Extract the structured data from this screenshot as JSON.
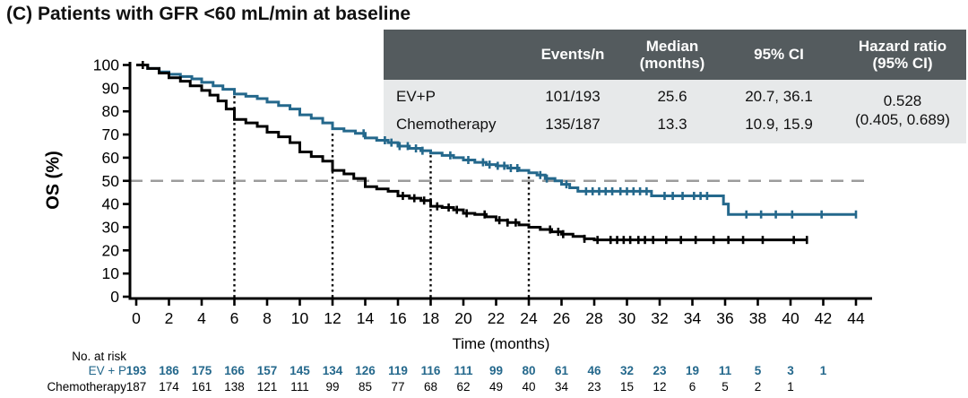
{
  "title": "(C) Patients with GFR <60 mL/min at baseline",
  "colors": {
    "evp_curve": "#24688c",
    "chemo_curve": "#000000",
    "reference_dash": "#9c9c9c",
    "dropline": "#000000",
    "table_header_bg": "#545b5e",
    "table_header_text": "#ffffff",
    "table_body_bg": "#e7e9ea"
  },
  "stats_table": {
    "header": {
      "events": "Events/n",
      "median_line1": "Median",
      "median_line2": "(months)",
      "ci": "95% CI",
      "hr_line1": "Hazard ratio",
      "hr_line2": "(95% CI)"
    },
    "rows": [
      {
        "label": "EV+P",
        "events_n": "101/193",
        "median": "25.6",
        "ci": "20.7, 36.1"
      },
      {
        "label": "Chemotherapy",
        "events_n": "135/187",
        "median": "13.3",
        "ci": "10.9, 15.9"
      }
    ],
    "hazard_ratio_value": "0.528",
    "hazard_ratio_ci": "(0.405, 0.689)"
  },
  "chart_data": {
    "type": "line",
    "subtype": "kaplan-meier-step",
    "xlabel": "Time (months)",
    "ylabel": "OS (%)",
    "xlim": [
      0,
      44
    ],
    "xticks": [
      0,
      2,
      4,
      6,
      8,
      10,
      12,
      14,
      16,
      18,
      20,
      22,
      24,
      26,
      28,
      30,
      32,
      34,
      36,
      38,
      40,
      42,
      44
    ],
    "ylim": [
      0,
      100
    ],
    "yticks": [
      0,
      10,
      20,
      30,
      40,
      50,
      60,
      70,
      80,
      90,
      100
    ],
    "grid": false,
    "reference_line_y": 50,
    "dropline_months": [
      6,
      12,
      18,
      24
    ],
    "series": [
      {
        "name": "EV + P",
        "color": "#24688c",
        "points": [
          [
            0,
            100
          ],
          [
            0.7,
            98.5
          ],
          [
            1.4,
            97
          ],
          [
            2,
            96
          ],
          [
            2.7,
            95
          ],
          [
            3.4,
            94
          ],
          [
            4,
            92.5
          ],
          [
            4.7,
            91
          ],
          [
            5.3,
            89.5
          ],
          [
            6,
            87.5
          ],
          [
            6.7,
            86.5
          ],
          [
            7.4,
            85.5
          ],
          [
            8,
            84
          ],
          [
            8.7,
            82.5
          ],
          [
            9.4,
            81
          ],
          [
            10,
            78.5
          ],
          [
            10.7,
            77
          ],
          [
            11.4,
            75
          ],
          [
            12,
            72.5
          ],
          [
            12.7,
            71.5
          ],
          [
            13.4,
            70.5
          ],
          [
            14,
            68.5
          ],
          [
            14.7,
            67.5
          ],
          [
            15.4,
            66.5
          ],
          [
            16,
            65
          ],
          [
            16.7,
            64
          ],
          [
            17.4,
            63
          ],
          [
            18,
            62
          ],
          [
            18.7,
            61
          ],
          [
            19.4,
            60
          ],
          [
            20,
            59
          ],
          [
            20.7,
            58
          ],
          [
            21.4,
            57
          ],
          [
            22,
            56.5
          ],
          [
            22.7,
            55.5
          ],
          [
            23.4,
            54.5
          ],
          [
            24,
            53.5
          ],
          [
            24.5,
            52.5
          ],
          [
            25,
            51
          ],
          [
            25.6,
            50
          ],
          [
            26,
            48.5
          ],
          [
            26.5,
            47
          ],
          [
            27,
            45.5
          ],
          [
            31.5,
            43.5
          ],
          [
            35.9,
            40
          ],
          [
            36.2,
            35.5
          ],
          [
            44,
            35.5
          ]
        ],
        "censor_times": [
          13.9,
          15.2,
          15.6,
          16.1,
          16.6,
          17.1,
          17.5,
          19.2,
          20.3,
          21.2,
          21.6,
          22.1,
          22.5,
          22.9,
          23.3,
          24.7,
          25.1,
          26.3,
          27.5,
          27.9,
          28.3,
          28.7,
          29.1,
          29.6,
          30.0,
          30.4,
          30.8,
          31.2,
          32.3,
          32.8,
          33.4,
          34.1,
          34.5,
          34.9,
          37.3,
          38.2,
          39.1,
          40.1,
          41.9,
          44.0
        ]
      },
      {
        "name": "Chemotherapy",
        "color": "#000000",
        "points": [
          [
            0,
            100
          ],
          [
            0.7,
            98.5
          ],
          [
            1.4,
            96.5
          ],
          [
            2,
            94.5
          ],
          [
            2.7,
            93
          ],
          [
            3.3,
            91
          ],
          [
            4,
            89
          ],
          [
            4.5,
            87
          ],
          [
            5,
            84.5
          ],
          [
            5.5,
            81
          ],
          [
            6,
            76.5
          ],
          [
            6.7,
            75
          ],
          [
            7.4,
            73.5
          ],
          [
            8,
            71
          ],
          [
            8.7,
            69
          ],
          [
            9.4,
            66.5
          ],
          [
            10,
            62.5
          ],
          [
            10.7,
            60.5
          ],
          [
            11.4,
            58.5
          ],
          [
            12,
            54.5
          ],
          [
            12.7,
            53
          ],
          [
            13.3,
            51
          ],
          [
            14,
            47.5
          ],
          [
            14.7,
            46.5
          ],
          [
            15.4,
            45.5
          ],
          [
            16,
            43.5
          ],
          [
            16.7,
            42.5
          ],
          [
            17.4,
            41.5
          ],
          [
            18,
            39
          ],
          [
            18.7,
            38.5
          ],
          [
            19.4,
            37.5
          ],
          [
            20,
            36
          ],
          [
            20.7,
            35.5
          ],
          [
            21.4,
            34.5
          ],
          [
            22,
            33
          ],
          [
            22.7,
            32
          ],
          [
            23.4,
            31
          ],
          [
            24,
            30
          ],
          [
            24.7,
            29
          ],
          [
            25.4,
            28
          ],
          [
            26,
            27
          ],
          [
            26.7,
            26
          ],
          [
            27.4,
            25
          ],
          [
            28,
            24.5
          ],
          [
            41,
            24.5
          ]
        ],
        "censor_times": [
          0.4,
          16.3,
          17.0,
          17.6,
          18.4,
          19.1,
          19.6,
          20.2,
          21.3,
          22.2,
          22.7,
          23.2,
          25.3,
          25.8,
          26.1,
          27.4,
          28.2,
          29.0,
          29.4,
          29.8,
          30.2,
          30.7,
          31.1,
          31.6,
          32.4,
          33.3,
          34.2,
          35.3,
          36.2,
          37.1,
          38.3,
          40.2,
          41.0
        ]
      }
    ]
  },
  "at_risk": {
    "heading": "No. at risk",
    "rows": [
      {
        "label": "EV + P",
        "color": "#24688c",
        "bold": true,
        "times": [
          0,
          2,
          4,
          6,
          8,
          10,
          12,
          14,
          16,
          18,
          20,
          22,
          24,
          26,
          28,
          30,
          32,
          34,
          36,
          38,
          40,
          42
        ],
        "values": [
          193,
          186,
          175,
          166,
          157,
          145,
          134,
          126,
          119,
          116,
          111,
          99,
          80,
          61,
          46,
          32,
          23,
          19,
          11,
          5,
          3,
          1
        ]
      },
      {
        "label": "Chemotherapy",
        "color": "#000000",
        "bold": false,
        "times": [
          0,
          2,
          4,
          6,
          8,
          10,
          12,
          14,
          16,
          18,
          20,
          22,
          24,
          26,
          28,
          30,
          32,
          34,
          36,
          38,
          40
        ],
        "values": [
          187,
          174,
          161,
          138,
          121,
          111,
          99,
          85,
          77,
          68,
          62,
          49,
          40,
          34,
          23,
          15,
          12,
          6,
          5,
          2,
          1
        ]
      }
    ]
  }
}
